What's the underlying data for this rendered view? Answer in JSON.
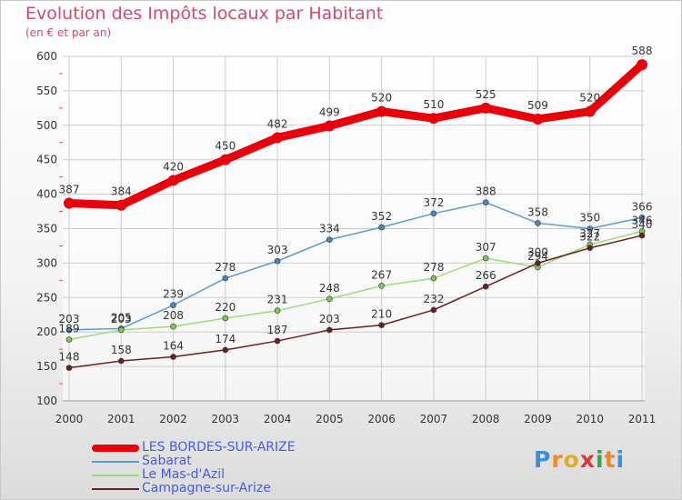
{
  "title": "Evolution des Impôts locaux par Habitant",
  "subtitle": "(en € et par an)",
  "logo": {
    "letters": [
      "P",
      "r",
      "o",
      "x",
      "i",
      "t",
      "i"
    ],
    "colors": [
      "#3a8fd6",
      "#f08a1e",
      "#e0b020",
      "#d63a3a",
      "#3aa050",
      "#f08a1e",
      "#3a8fd6"
    ]
  },
  "legend": [
    {
      "label": "LES BORDES-SUR-ARIZE",
      "color": "#e8000b"
    },
    {
      "label": "Sabarat",
      "color": "#5b9bd5"
    },
    {
      "label": "Le Mas-d'Azil",
      "color": "#9bdc7a"
    },
    {
      "label": "Campagne-sur-Arize",
      "color": "#6b1f1f"
    }
  ],
  "chart_data": {
    "type": "line",
    "x": [
      "2000",
      "2001",
      "2002",
      "2003",
      "2004",
      "2005",
      "2006",
      "2007",
      "2008",
      "2009",
      "2010",
      "2011"
    ],
    "ylim": [
      100,
      600
    ],
    "yticks": [
      "100",
      "150",
      "200",
      "250",
      "300",
      "350",
      "400",
      "450",
      "500",
      "550",
      "600"
    ],
    "grid": true,
    "series": [
      {
        "name": "LES BORDES-SUR-ARIZE",
        "color": "#e8000b",
        "marker": "#e8000b",
        "values": [
          387,
          384,
          420,
          450,
          482,
          499,
          520,
          510,
          525,
          509,
          520,
          588
        ],
        "labels": [
          "387",
          "384",
          "420",
          "450",
          "482",
          "499",
          "520",
          "510",
          "525",
          "509",
          "520",
          "588"
        ]
      },
      {
        "name": "Sabarat",
        "color": "#5b9bd5",
        "marker": "#4a86c5",
        "values": [
          203,
          205,
          239,
          278,
          303,
          334,
          352,
          372,
          388,
          358,
          350,
          366
        ],
        "labels": [
          "203",
          "205",
          "239",
          "278",
          "303",
          "334",
          "352",
          "372",
          "388",
          "358",
          "350",
          "366"
        ]
      },
      {
        "name": "Le Mas-d'Azil",
        "color": "#9bdc7a",
        "marker": "#7cc856",
        "values": [
          189,
          203,
          208,
          220,
          231,
          248,
          267,
          278,
          307,
          294,
          327,
          346
        ],
        "labels": [
          "189",
          "203",
          "208",
          "220",
          "231",
          "248",
          "267",
          "278",
          "307",
          "294",
          "327",
          "346"
        ]
      },
      {
        "name": "Campagne-sur-Arize",
        "color": "#6b1f1f",
        "marker": "#6b1f1f",
        "values": [
          148,
          158,
          164,
          174,
          187,
          203,
          210,
          232,
          266,
          300,
          322,
          340
        ],
        "labels": [
          "148",
          "158",
          "164",
          "174",
          "187",
          "203",
          "210",
          "232",
          "266",
          "300",
          "322",
          "340"
        ]
      }
    ]
  }
}
